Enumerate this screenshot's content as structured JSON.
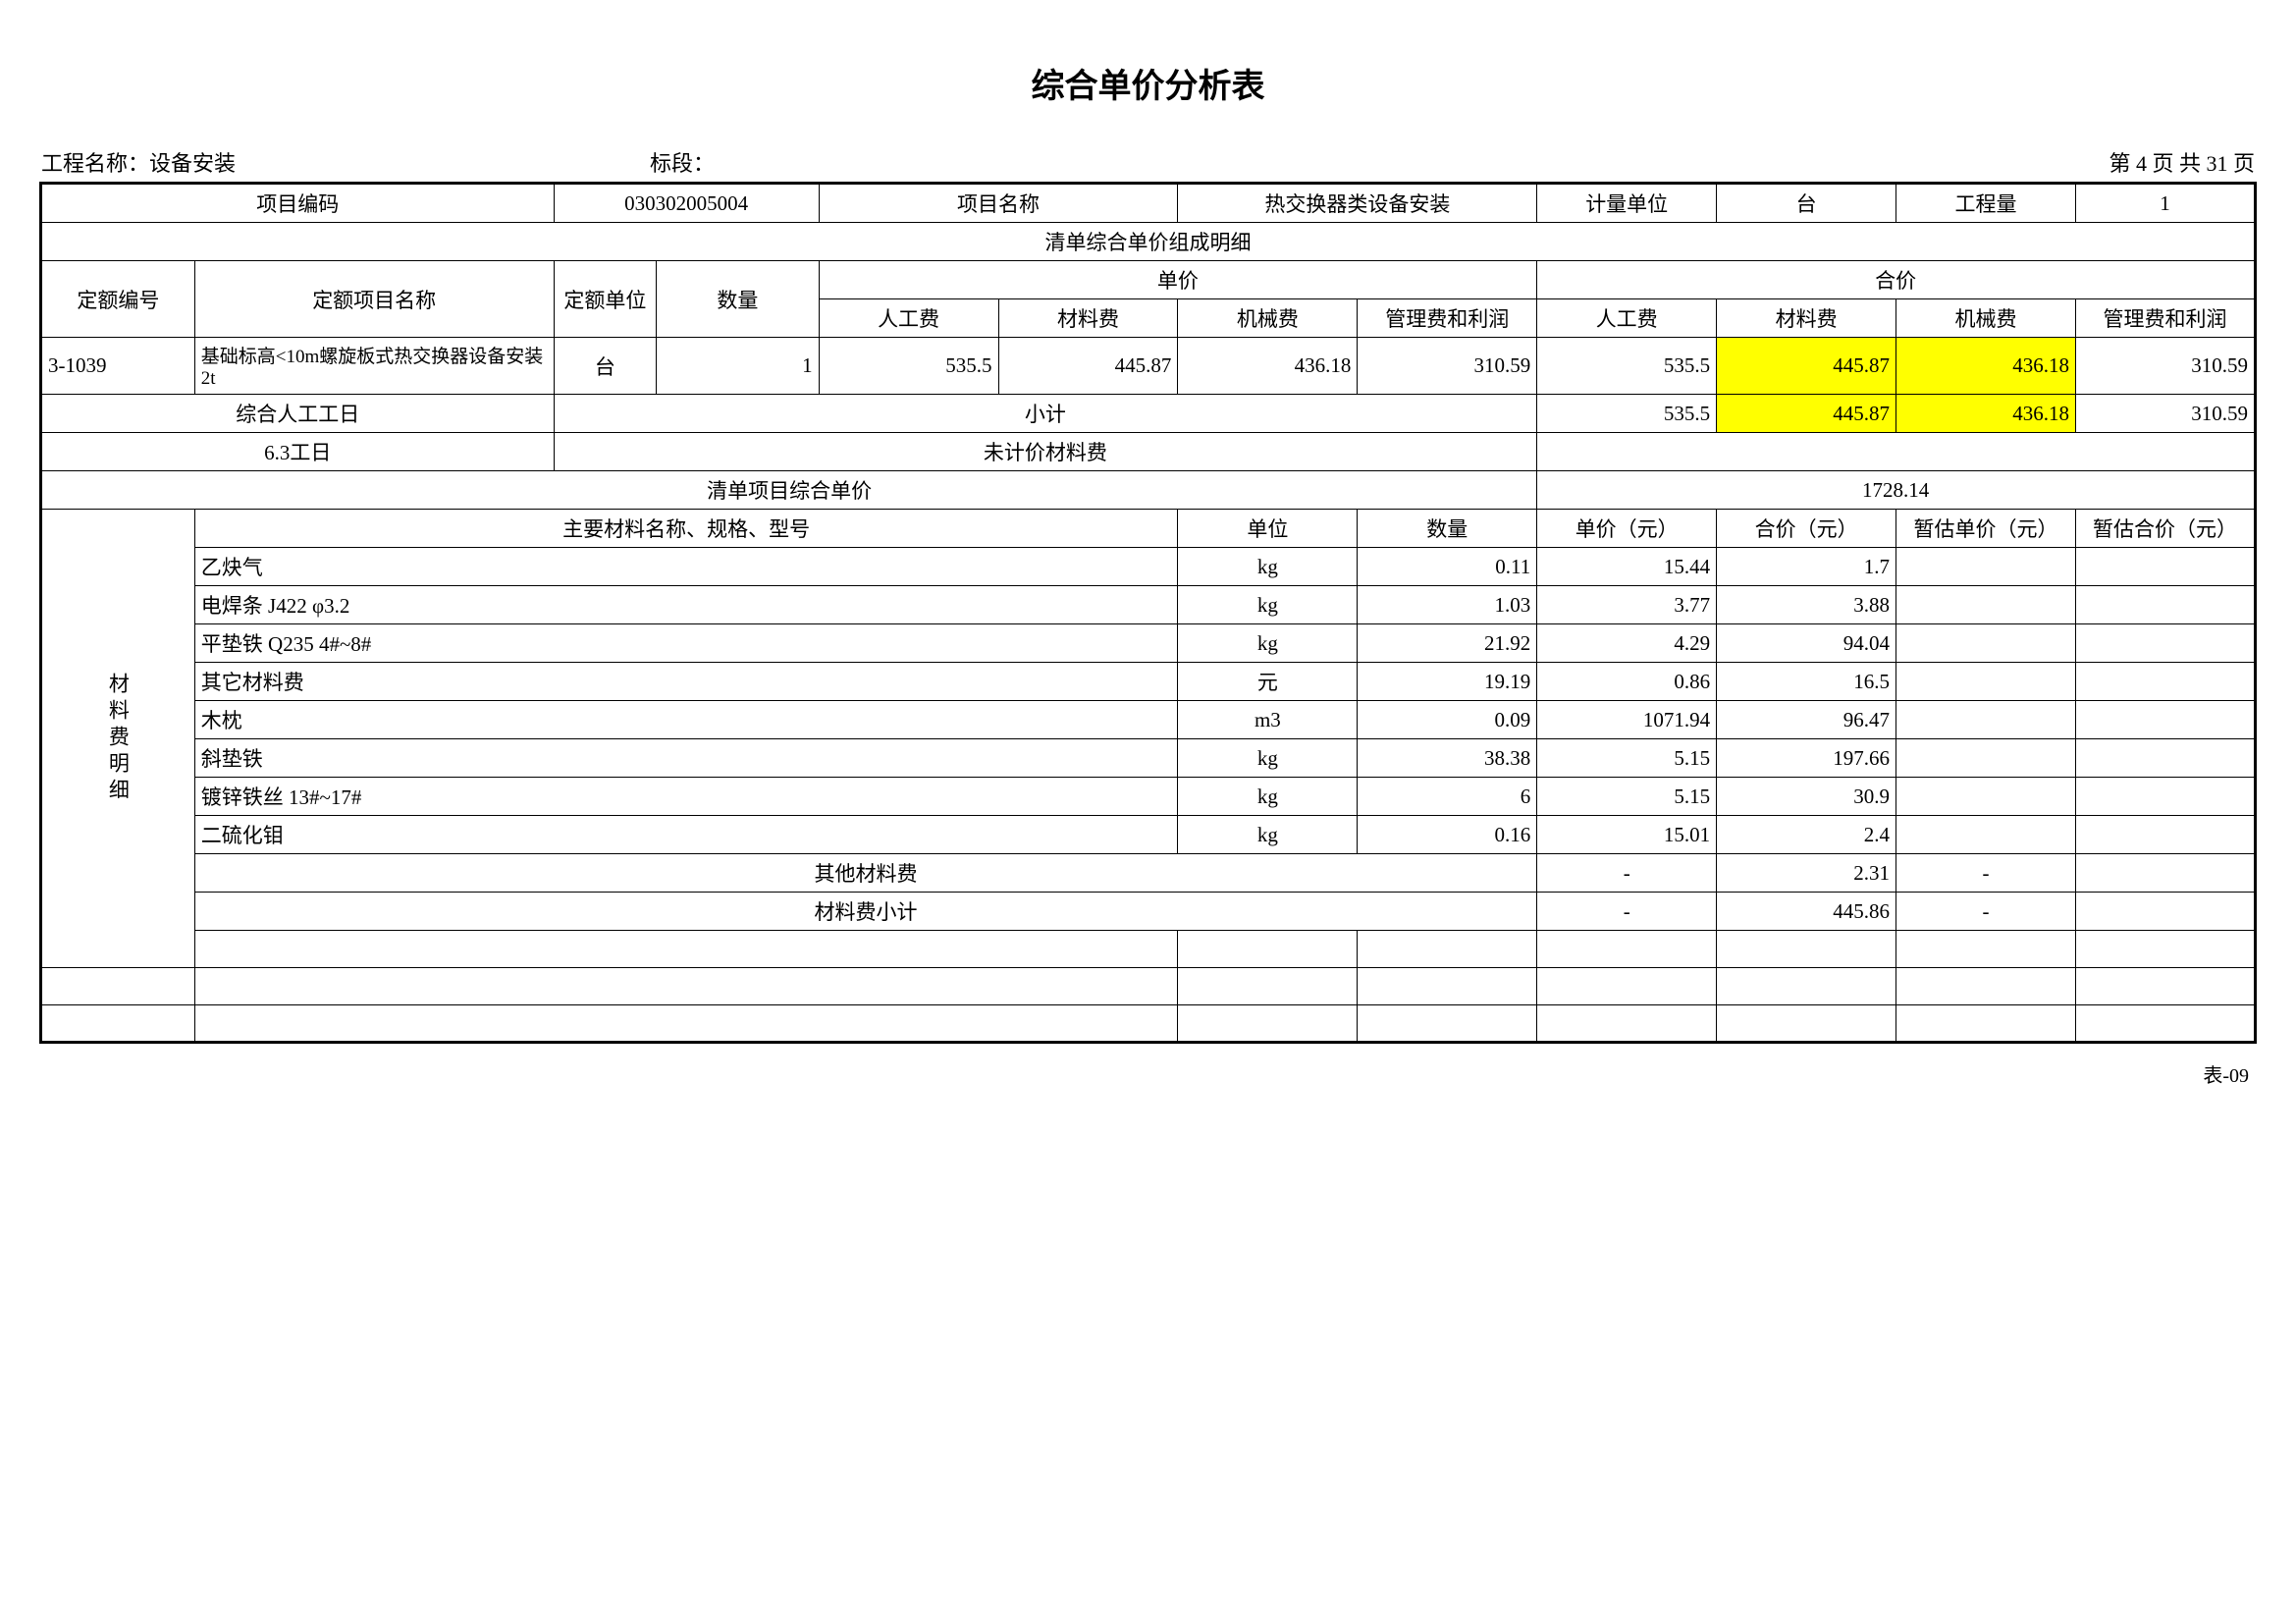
{
  "title": "综合单价分析表",
  "colors": {
    "highlight": "#ffff00",
    "border": "#000000",
    "background": "#ffffff"
  },
  "meta": {
    "project_label": "工程名称：",
    "project_name": "设备安装",
    "section_label": "标段：",
    "section_value": "",
    "page_text": "第 4 页  共 31 页"
  },
  "head": {
    "item_code_label": "项目编码",
    "item_code": "030302005004",
    "item_name_label": "项目名称",
    "item_name": "热交换器类设备安装",
    "unit_label": "计量单位",
    "unit": "台",
    "qty_label": "工程量",
    "qty": "1"
  },
  "sect_header": "清单综合单价组成明细",
  "cols": {
    "quota_no": "定额编号",
    "quota_name": "定额项目名称",
    "quota_unit": "定额单位",
    "qty": "数量",
    "unit_price": "单价",
    "total_price": "合价",
    "labor": "人工费",
    "material": "材料费",
    "machine": "机械费",
    "mgmt": "管理费和利润"
  },
  "rows": [
    {
      "no": "3-1039",
      "name": "基础标高<10m螺旋板式热交换器设备安装2t",
      "unit": "台",
      "qty": "1",
      "up": {
        "labor": "535.5",
        "material": "445.87",
        "machine": "436.18",
        "mgmt": "310.59"
      },
      "tp": {
        "labor": "535.5",
        "material": "445.87",
        "machine": "436.18",
        "mgmt": "310.59"
      }
    }
  ],
  "summary": {
    "labor_day_label": "综合人工工日",
    "subtotal_label": "小计",
    "subtotal": {
      "labor": "535.5",
      "material": "445.87",
      "machine": "436.18",
      "mgmt": "310.59"
    },
    "labor_day_value": "6.3工日",
    "unpriced_label": "未计价材料费",
    "list_price_label": "清单项目综合单价",
    "list_price_value": "1728.14"
  },
  "mat": {
    "side_label": "材料费明细",
    "h_name": "主要材料名称、规格、型号",
    "h_unit": "单位",
    "h_qty": "数量",
    "h_unitprice": "单价（元）",
    "h_total": "合价（元）",
    "h_est_up": "暂估单价（元）",
    "h_est_tp": "暂估合价（元）",
    "items": [
      {
        "name": "乙炔气",
        "unit": "kg",
        "qty": "0.11",
        "up": "15.44",
        "tp": "1.7"
      },
      {
        "name": "电焊条 J422 φ3.2",
        "unit": "kg",
        "qty": "1.03",
        "up": "3.77",
        "tp": "3.88"
      },
      {
        "name": "平垫铁 Q235 4#~8#",
        "unit": "kg",
        "qty": "21.92",
        "up": "4.29",
        "tp": "94.04"
      },
      {
        "name": "其它材料费",
        "unit": "元",
        "qty": "19.19",
        "up": "0.86",
        "tp": "16.5"
      },
      {
        "name": "木枕",
        "unit": "m3",
        "qty": "0.09",
        "up": "1071.94",
        "tp": "96.47"
      },
      {
        "name": "斜垫铁",
        "unit": "kg",
        "qty": "38.38",
        "up": "5.15",
        "tp": "197.66"
      },
      {
        "name": "镀锌铁丝 13#~17#",
        "unit": "kg",
        "qty": "6",
        "up": "5.15",
        "tp": "30.9"
      },
      {
        "name": "二硫化钼",
        "unit": "kg",
        "qty": "0.16",
        "up": "15.01",
        "tp": "2.4"
      }
    ],
    "other_label": "其他材料费",
    "other_up": "-",
    "other_tp": "2.31",
    "other_est": "-",
    "sub_label": "材料费小计",
    "sub_up": "-",
    "sub_tp": "445.86",
    "sub_est": "-"
  },
  "footer": "表-09"
}
